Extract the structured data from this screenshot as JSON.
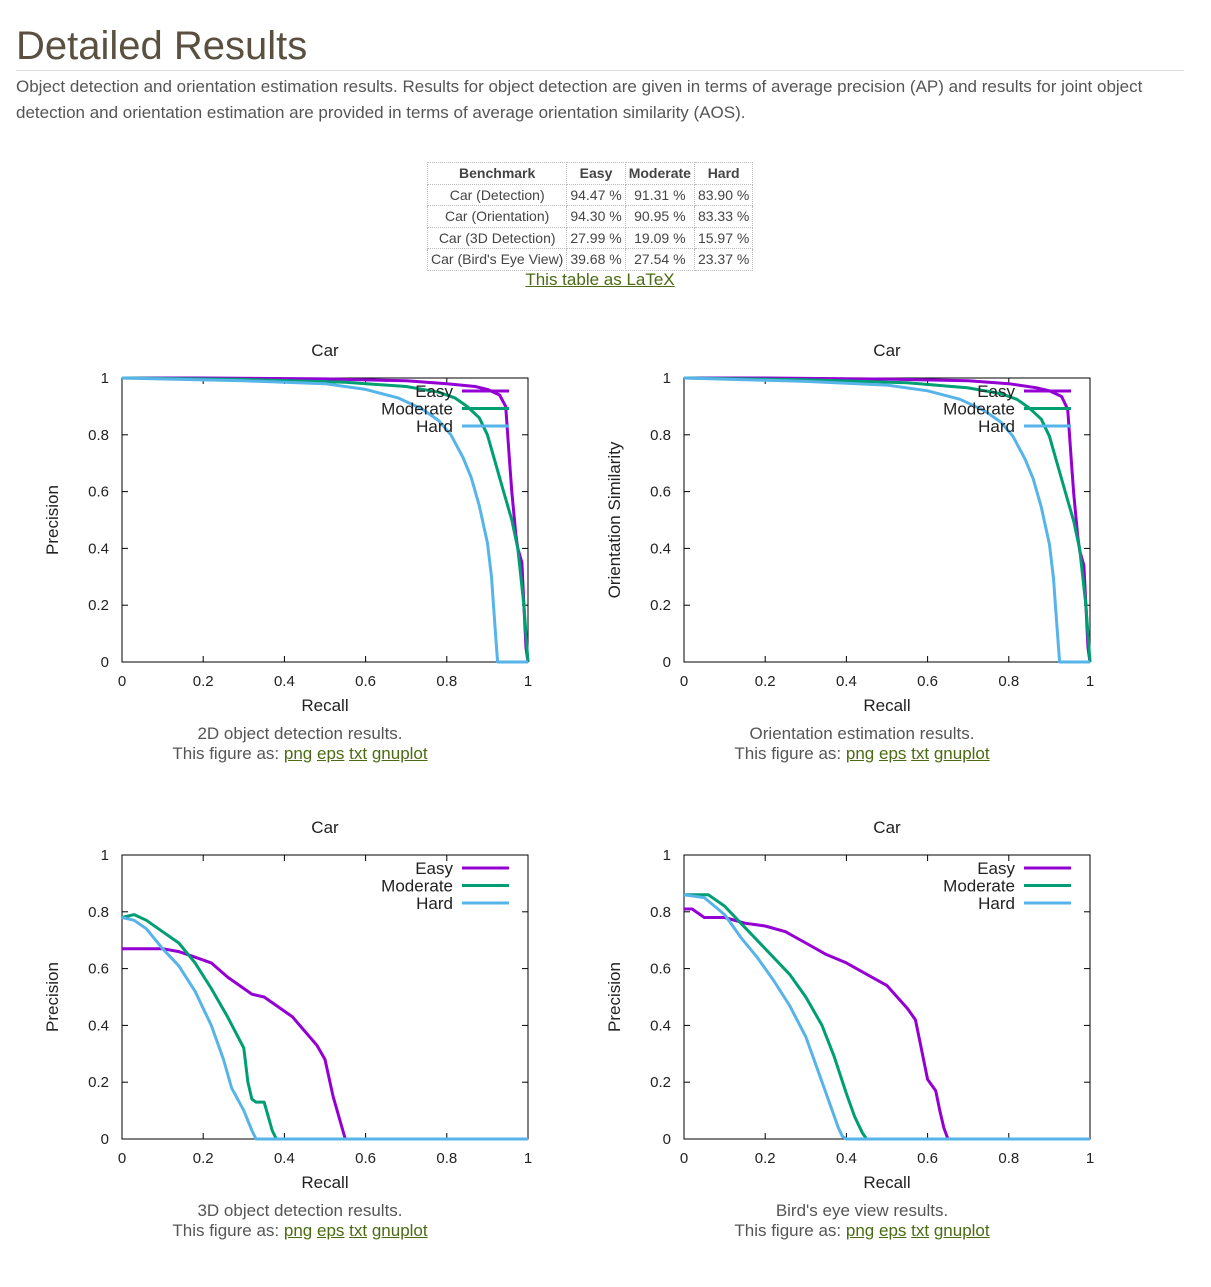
{
  "page": {
    "title": "Detailed Results",
    "intro": "Object detection and orientation estimation results. Results for object detection are given in terms of average precision (AP) and results for joint object detection and orientation estimation are provided in terms of average orientation similarity (AOS)."
  },
  "table": {
    "headers": [
      "Benchmark",
      "Easy",
      "Moderate",
      "Hard"
    ],
    "rows": [
      [
        "Car (Detection)",
        "94.47 %",
        "91.31 %",
        "83.90 %"
      ],
      [
        "Car (Orientation)",
        "94.30 %",
        "90.95 %",
        "83.33 %"
      ],
      [
        "Car (3D Detection)",
        "27.99 %",
        "19.09 %",
        "15.97 %"
      ],
      [
        "Car (Bird's Eye View)",
        "39.68 %",
        "27.54 %",
        "23.37 %"
      ]
    ],
    "latex_link": "This table as LaTeX"
  },
  "figures": [
    {
      "caption": "2D object detection results.",
      "links_prefix": "This figure as:",
      "links": [
        "png",
        "eps",
        "txt",
        "gnuplot"
      ]
    },
    {
      "caption": "Orientation estimation results.",
      "links_prefix": "This figure as:",
      "links": [
        "png",
        "eps",
        "txt",
        "gnuplot"
      ]
    },
    {
      "caption": "3D object detection results.",
      "links_prefix": "This figure as:",
      "links": [
        "png",
        "eps",
        "txt",
        "gnuplot"
      ]
    },
    {
      "caption": "Bird's eye view results.",
      "links_prefix": "This figure as:",
      "links": [
        "png",
        "eps",
        "txt",
        "gnuplot"
      ]
    }
  ],
  "colors": {
    "easy": "#9400d3",
    "moderate": "#009e73",
    "hard": "#56b4e9"
  },
  "chart_data": [
    {
      "type": "line",
      "title": "Car",
      "xlabel": "Recall",
      "ylabel": "Precision",
      "xlim": [
        0,
        1
      ],
      "ylim": [
        0,
        1
      ],
      "xticks": [
        "0",
        "0.2",
        "0.4",
        "0.6",
        "0.8",
        "1"
      ],
      "yticks": [
        "0",
        "0.2",
        "0.4",
        "0.6",
        "0.8",
        "1"
      ],
      "legend": "top-right",
      "series": [
        {
          "name": "Easy",
          "x": [
            0,
            0.2,
            0.5,
            0.7,
            0.8,
            0.87,
            0.9,
            0.93,
            0.945,
            0.95,
            0.955,
            0.96,
            0.97,
            0.975,
            0.985,
            0.99,
            0.995,
            1.0
          ],
          "y": [
            1,
            1,
            0.997,
            0.99,
            0.98,
            0.97,
            0.96,
            0.94,
            0.9,
            0.8,
            0.7,
            0.6,
            0.45,
            0.4,
            0.35,
            0.2,
            0.05,
            0
          ]
        },
        {
          "name": "Moderate",
          "x": [
            0,
            0.3,
            0.55,
            0.7,
            0.78,
            0.82,
            0.85,
            0.88,
            0.9,
            0.92,
            0.94,
            0.96,
            0.975,
            0.99,
            1.0
          ],
          "y": [
            1,
            0.995,
            0.985,
            0.97,
            0.95,
            0.93,
            0.9,
            0.86,
            0.8,
            0.7,
            0.6,
            0.5,
            0.4,
            0.2,
            0
          ]
        },
        {
          "name": "Hard",
          "x": [
            0,
            0.3,
            0.5,
            0.6,
            0.68,
            0.74,
            0.78,
            0.81,
            0.84,
            0.86,
            0.88,
            0.9,
            0.91,
            0.915,
            0.92,
            0.925,
            1.0
          ],
          "y": [
            1,
            0.99,
            0.98,
            0.96,
            0.93,
            0.89,
            0.85,
            0.8,
            0.72,
            0.65,
            0.55,
            0.42,
            0.3,
            0.2,
            0.1,
            0,
            0
          ]
        }
      ]
    },
    {
      "type": "line",
      "title": "Car",
      "xlabel": "Recall",
      "ylabel": "Orientation Similarity",
      "xlim": [
        0,
        1
      ],
      "ylim": [
        0,
        1
      ],
      "xticks": [
        "0",
        "0.2",
        "0.4",
        "0.6",
        "0.8",
        "1"
      ],
      "yticks": [
        "0",
        "0.2",
        "0.4",
        "0.6",
        "0.8",
        "1"
      ],
      "legend": "top-right",
      "series": [
        {
          "name": "Easy",
          "x": [
            0,
            0.2,
            0.5,
            0.7,
            0.8,
            0.87,
            0.9,
            0.93,
            0.945,
            0.95,
            0.955,
            0.96,
            0.97,
            0.975,
            0.985,
            0.99,
            0.995,
            1.0
          ],
          "y": [
            1,
            1,
            0.996,
            0.99,
            0.98,
            0.965,
            0.955,
            0.935,
            0.89,
            0.79,
            0.69,
            0.59,
            0.44,
            0.39,
            0.34,
            0.2,
            0.05,
            0
          ]
        },
        {
          "name": "Moderate",
          "x": [
            0,
            0.3,
            0.55,
            0.7,
            0.78,
            0.82,
            0.85,
            0.88,
            0.9,
            0.92,
            0.94,
            0.96,
            0.975,
            0.99,
            1.0
          ],
          "y": [
            1,
            0.994,
            0.983,
            0.965,
            0.945,
            0.925,
            0.895,
            0.855,
            0.795,
            0.695,
            0.595,
            0.495,
            0.395,
            0.2,
            0
          ]
        },
        {
          "name": "Hard",
          "x": [
            0,
            0.3,
            0.5,
            0.6,
            0.68,
            0.74,
            0.78,
            0.81,
            0.84,
            0.86,
            0.88,
            0.9,
            0.91,
            0.915,
            0.92,
            0.925,
            1.0
          ],
          "y": [
            1,
            0.988,
            0.975,
            0.955,
            0.925,
            0.885,
            0.845,
            0.795,
            0.715,
            0.645,
            0.545,
            0.415,
            0.295,
            0.195,
            0.1,
            0,
            0
          ]
        }
      ]
    },
    {
      "type": "line",
      "title": "Car",
      "xlabel": "Recall",
      "ylabel": "Precision",
      "xlim": [
        0,
        1
      ],
      "ylim": [
        0,
        1
      ],
      "xticks": [
        "0",
        "0.2",
        "0.4",
        "0.6",
        "0.8",
        "1"
      ],
      "yticks": [
        "0",
        "0.2",
        "0.4",
        "0.6",
        "0.8",
        "1"
      ],
      "legend": "top-right",
      "series": [
        {
          "name": "Easy",
          "x": [
            0,
            0.1,
            0.14,
            0.18,
            0.22,
            0.26,
            0.3,
            0.32,
            0.35,
            0.38,
            0.42,
            0.45,
            0.48,
            0.5,
            0.52,
            0.54,
            0.55,
            1.0
          ],
          "y": [
            0.67,
            0.67,
            0.66,
            0.64,
            0.62,
            0.57,
            0.53,
            0.51,
            0.5,
            0.47,
            0.43,
            0.38,
            0.33,
            0.28,
            0.15,
            0.05,
            0,
            0
          ]
        },
        {
          "name": "Moderate",
          "x": [
            0,
            0.03,
            0.06,
            0.1,
            0.14,
            0.18,
            0.22,
            0.26,
            0.3,
            0.31,
            0.32,
            0.33,
            0.35,
            0.36,
            0.37,
            0.38,
            1.0
          ],
          "y": [
            0.78,
            0.79,
            0.77,
            0.73,
            0.69,
            0.62,
            0.53,
            0.43,
            0.32,
            0.2,
            0.14,
            0.13,
            0.13,
            0.08,
            0.03,
            0,
            0
          ]
        },
        {
          "name": "Hard",
          "x": [
            0,
            0.03,
            0.06,
            0.1,
            0.14,
            0.18,
            0.22,
            0.25,
            0.27,
            0.3,
            0.32,
            0.33,
            1.0
          ],
          "y": [
            0.78,
            0.77,
            0.74,
            0.67,
            0.61,
            0.52,
            0.4,
            0.28,
            0.18,
            0.1,
            0.03,
            0,
            0
          ]
        }
      ]
    },
    {
      "type": "line",
      "title": "Car",
      "xlabel": "Recall",
      "ylabel": "Precision",
      "xlim": [
        0,
        1
      ],
      "ylim": [
        0,
        1
      ],
      "xticks": [
        "0",
        "0.2",
        "0.4",
        "0.6",
        "0.8",
        "1"
      ],
      "yticks": [
        "0",
        "0.2",
        "0.4",
        "0.6",
        "0.8",
        "1"
      ],
      "legend": "top-right",
      "series": [
        {
          "name": "Easy",
          "x": [
            0,
            0.02,
            0.05,
            0.1,
            0.15,
            0.2,
            0.25,
            0.3,
            0.35,
            0.4,
            0.45,
            0.5,
            0.55,
            0.57,
            0.58,
            0.6,
            0.62,
            0.63,
            0.64,
            0.65,
            1.0
          ],
          "y": [
            0.81,
            0.81,
            0.78,
            0.78,
            0.76,
            0.75,
            0.73,
            0.69,
            0.65,
            0.62,
            0.58,
            0.54,
            0.46,
            0.42,
            0.35,
            0.21,
            0.17,
            0.1,
            0.04,
            0,
            0
          ]
        },
        {
          "name": "Moderate",
          "x": [
            0,
            0.06,
            0.1,
            0.14,
            0.18,
            0.22,
            0.26,
            0.3,
            0.34,
            0.37,
            0.4,
            0.42,
            0.44,
            0.45,
            1.0
          ],
          "y": [
            0.86,
            0.86,
            0.82,
            0.76,
            0.7,
            0.64,
            0.58,
            0.5,
            0.4,
            0.29,
            0.16,
            0.08,
            0.02,
            0,
            0
          ]
        },
        {
          "name": "Hard",
          "x": [
            0,
            0.05,
            0.1,
            0.14,
            0.18,
            0.22,
            0.26,
            0.3,
            0.33,
            0.36,
            0.38,
            0.39,
            0.4,
            1.0
          ],
          "y": [
            0.86,
            0.85,
            0.79,
            0.71,
            0.64,
            0.56,
            0.47,
            0.36,
            0.24,
            0.12,
            0.04,
            0.01,
            0,
            0
          ]
        }
      ]
    }
  ]
}
